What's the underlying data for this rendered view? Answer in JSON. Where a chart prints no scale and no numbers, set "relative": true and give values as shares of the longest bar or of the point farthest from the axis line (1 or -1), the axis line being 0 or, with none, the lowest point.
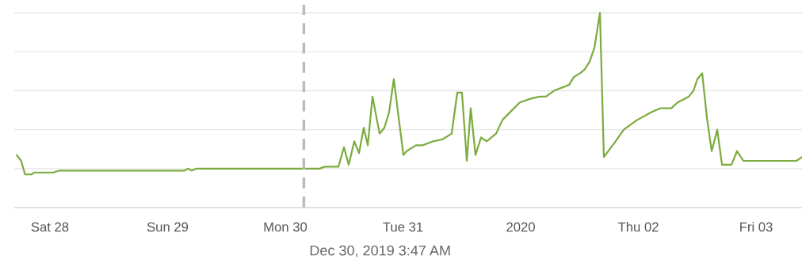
{
  "chart_data": {
    "type": "line",
    "relative": true,
    "grid": "y",
    "marker": "none",
    "line_style": "solid",
    "xlim": [
      "2019-12-27T16:44",
      "2020-01-03T09:22"
    ],
    "xticks": [
      {
        "value": "2019-12-28",
        "label": "Sat 28"
      },
      {
        "value": "2019-12-29",
        "label": "Sun 29"
      },
      {
        "value": "2019-12-30",
        "label": "Mon 30"
      },
      {
        "value": "2019-12-31",
        "label": "Tue 31"
      },
      {
        "value": "2020-01-01",
        "label": "2020"
      },
      {
        "value": "2020-01-02",
        "label": "Thu 02"
      },
      {
        "value": "2020-01-03",
        "label": "Fri 03"
      }
    ],
    "ref_lines": [
      {
        "axis": "x",
        "value": "2019-12-30T03:47",
        "label": "Dec 30, 2019 3:47 AM",
        "color": "#bbbbbb",
        "line_style": "dashed"
      }
    ],
    "x": [
      "2019-12-27T17:13",
      "2019-12-27T18:08",
      "2019-12-27T18:56",
      "2019-12-27T20:17",
      "2019-12-27T20:46",
      "2019-12-28T00:39",
      "2019-12-28T01:56",
      "2019-12-29T03:29",
      "2019-12-29T04:07",
      "2019-12-29T04:56",
      "2019-12-29T05:54",
      "2019-12-30T06:57",
      "2019-12-30T08:05",
      "2019-12-30T10:50",
      "2019-12-30T11:58",
      "2019-12-30T12:56",
      "2019-12-30T14:04",
      "2019-12-30T15:02",
      "2019-12-30T16:00",
      "2019-12-30T16:49",
      "2019-12-30T17:47",
      "2019-12-30T19:14",
      "2019-12-30T20:12",
      "2019-12-30T21:10",
      "2019-12-30T22:08",
      "2019-12-31T00:05",
      "2019-12-31T00:44",
      "2019-12-31T02:40",
      "2019-12-31T03:58",
      "2019-12-31T06:04",
      "2019-12-31T08:00",
      "2019-12-31T09:56",
      "2019-12-31T11:04",
      "2019-12-31T12:02",
      "2019-12-31T13:01",
      "2019-12-31T13:49",
      "2019-12-31T14:47",
      "2019-12-31T15:55",
      "2019-12-31T17:03",
      "2019-12-31T18:59",
      "2019-12-31T20:17",
      "2019-12-31T22:13",
      "2019-12-31T23:50",
      "2020-01-01T02:06",
      "2020-01-01T03:53",
      "2020-01-01T05:10",
      "2020-01-01T06:47",
      "2020-01-01T09:52",
      "2020-01-01T10:50",
      "2020-01-01T12:07",
      "2020-01-01T13:05",
      "2020-01-01T14:04",
      "2020-01-01T15:02",
      "2020-01-01T16:10",
      "2020-01-01T16:58",
      "2020-01-01T19:04",
      "2020-01-01T21:01",
      "2020-01-01T23:46",
      "2020-01-02T02:40",
      "2020-01-02T04:27",
      "2020-01-02T06:43",
      "2020-01-02T08:00",
      "2020-01-02T10:16",
      "2020-01-02T11:14",
      "2020-01-02T12:02",
      "2020-01-02T13:01",
      "2020-01-02T13:59",
      "2020-01-02T14:57",
      "2020-01-02T16:05",
      "2020-01-02T17:03",
      "2020-01-02T18:59",
      "2020-01-02T20:07",
      "2020-01-02T21:25",
      "2020-01-03T08:14",
      "2020-01-03T09:22"
    ],
    "series": [
      {
        "color": "#7cab3f",
        "values": [
          0.27,
          0.24,
          0.17,
          0.17,
          0.18,
          0.18,
          0.19,
          0.19,
          0.2,
          0.19,
          0.2,
          0.2,
          0.21,
          0.21,
          0.31,
          0.22,
          0.34,
          0.28,
          0.41,
          0.32,
          0.57,
          0.38,
          0.41,
          0.49,
          0.66,
          0.27,
          0.29,
          0.32,
          0.32,
          0.34,
          0.35,
          0.38,
          0.59,
          0.59,
          0.24,
          0.51,
          0.27,
          0.36,
          0.34,
          0.38,
          0.45,
          0.5,
          0.54,
          0.56,
          0.57,
          0.57,
          0.6,
          0.63,
          0.67,
          0.69,
          0.71,
          0.75,
          0.82,
          1,
          0.26,
          0.33,
          0.4,
          0.45,
          0.49,
          0.51,
          0.51,
          0.54,
          0.57,
          0.6,
          0.66,
          0.69,
          0.46,
          0.29,
          0.4,
          0.22,
          0.22,
          0.29,
          0.24,
          0.24,
          0.26
        ]
      }
    ]
  }
}
